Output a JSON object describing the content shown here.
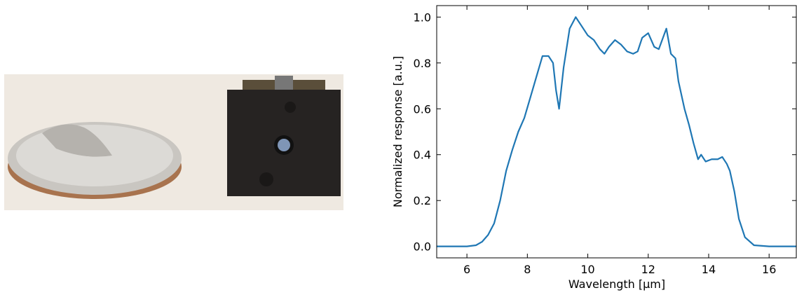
{
  "chart_data": {
    "type": "line",
    "xlabel": "Wavelength [µm]",
    "ylabel": "Normalized response [a.u.]",
    "x": [
      5.0,
      6.0,
      6.3,
      6.5,
      6.7,
      6.9,
      7.1,
      7.3,
      7.5,
      7.7,
      7.9,
      8.1,
      8.3,
      8.5,
      8.7,
      8.85,
      8.95,
      9.05,
      9.2,
      9.4,
      9.6,
      9.8,
      10.0,
      10.2,
      10.4,
      10.55,
      10.7,
      10.9,
      11.1,
      11.3,
      11.5,
      11.65,
      11.8,
      12.0,
      12.2,
      12.35,
      12.6,
      12.75,
      12.9,
      13.0,
      13.2,
      13.35,
      13.5,
      13.65,
      13.75,
      13.9,
      14.1,
      14.3,
      14.45,
      14.55,
      14.6,
      14.7,
      14.85,
      15.0,
      15.2,
      15.5,
      16.0,
      16.9
    ],
    "series": [
      {
        "color": "#1f77b4",
        "values": [
          0,
          0,
          0.005,
          0.02,
          0.05,
          0.1,
          0.2,
          0.33,
          0.42,
          0.5,
          0.56,
          0.65,
          0.74,
          0.83,
          0.83,
          0.8,
          0.68,
          0.6,
          0.78,
          0.95,
          1.0,
          0.96,
          0.92,
          0.9,
          0.86,
          0.84,
          0.87,
          0.9,
          0.88,
          0.85,
          0.84,
          0.85,
          0.91,
          0.93,
          0.87,
          0.86,
          0.95,
          0.84,
          0.82,
          0.72,
          0.6,
          0.53,
          0.45,
          0.38,
          0.4,
          0.37,
          0.38,
          0.38,
          0.39,
          0.37,
          0.36,
          0.33,
          0.24,
          0.12,
          0.04,
          0.005,
          0,
          0
        ]
      }
    ],
    "xlim": [
      5.0,
      16.9
    ],
    "ylim": [
      -0.05,
      1.05
    ],
    "xticks": [
      6,
      8,
      10,
      12,
      14,
      16
    ],
    "yticks": [
      {
        "value": 0,
        "label": "0.0"
      },
      0.2,
      0.4,
      0.6,
      0.8,
      {
        "value": 1,
        "label": "1.0"
      }
    ]
  }
}
